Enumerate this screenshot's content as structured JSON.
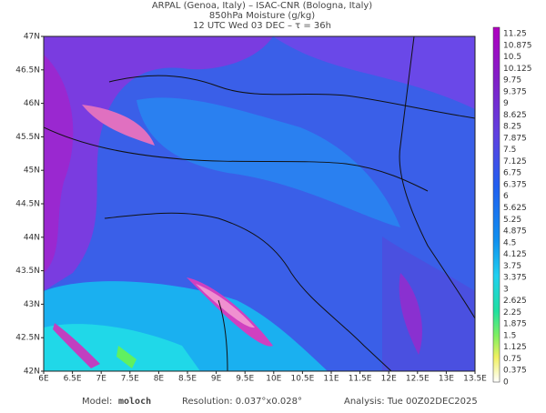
{
  "header": {
    "line1": "ARPAL (Genoa, Italy)  –  ISAC-CNR (Bologna, Italy)",
    "line2": "850hPa Moisture (g/kg)",
    "line3": "12 UTC Wed 03 DEC  –  τ = 36h"
  },
  "lat_labels": [
    "47N",
    "46.5N",
    "46N",
    "45.5N",
    "45N",
    "44.5N",
    "44N",
    "43.5N",
    "43N",
    "42.5N",
    "42N"
  ],
  "lon_labels": [
    "6E",
    "6.5E",
    "7E",
    "7.5E",
    "8E",
    "8.5E",
    "9E",
    "9.5E",
    "10E",
    "10.5E",
    "11E",
    "11.5E",
    "12E",
    "12.5E",
    "13E",
    "13.5E"
  ],
  "colorbar_labels": [
    "11.25",
    "10.875",
    "10.5",
    "10.125",
    "9.75",
    "9.375",
    "9",
    "8.625",
    "8.25",
    "7.875",
    "7.5",
    "7.125",
    "6.75",
    "6.375",
    "6",
    "5.625",
    "5.25",
    "4.875",
    "4.5",
    "4.125",
    "3.75",
    "3.375",
    "3",
    "2.625",
    "2.25",
    "1.875",
    "1.5",
    "1.125",
    "0.75",
    "0.375",
    "0"
  ],
  "footer": {
    "model_label": "Model:",
    "model": "moloch",
    "resolution": "Resolution: 0.037°x0.028°",
    "analysis": "Analysis: Tue 00Z02DEC2025"
  }
}
